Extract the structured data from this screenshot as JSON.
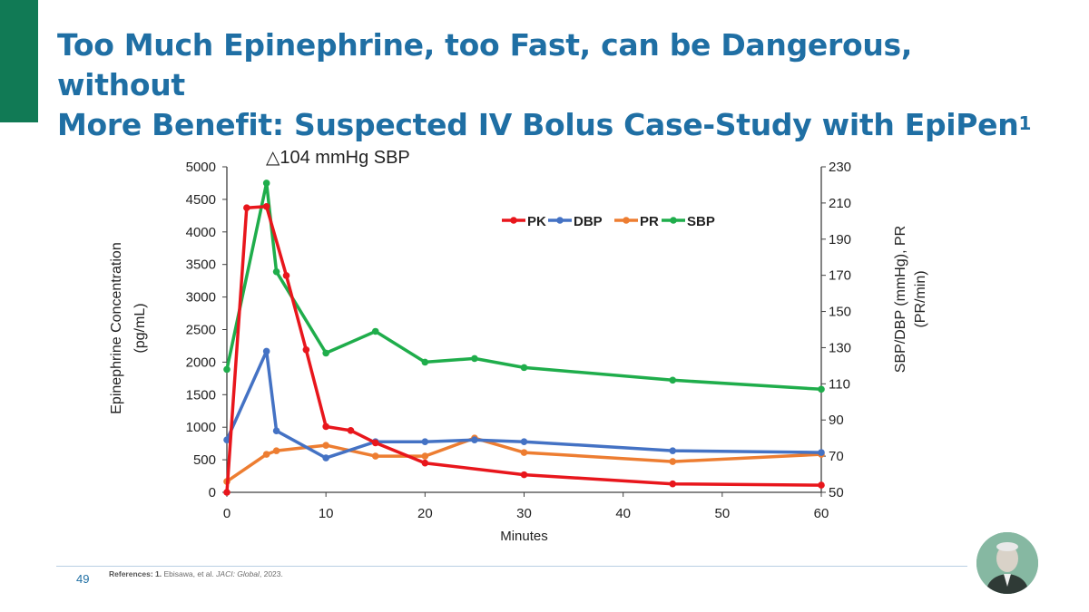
{
  "slide": {
    "title_line1": "Too Much Epinephrine, too Fast, can be Dangerous, without",
    "title_line2": "More Benefit: Suspected IV Bolus Case-Study with EpiPen",
    "title_sup": "1",
    "page_number": "49",
    "references_label": "References: 1.",
    "references_authors": "Ebisawa, et al.",
    "references_journal": "JACI: Global",
    "references_year": ", 2023."
  },
  "chart_data": {
    "type": "line",
    "annotation": "△104 mmHg SBP",
    "xlabel": "Minutes",
    "ylabel_left": "Epinephrine Concentration (pg/mL)",
    "ylabel_left_line1": "Epinephrine Concentration",
    "ylabel_left_line2": "(pg/mL)",
    "ylabel_right_line1": "SBP/DBP (mmHg), PR",
    "ylabel_right_line2": "(PR/min)",
    "xlim": [
      0,
      60
    ],
    "ylim_left": [
      0,
      5000
    ],
    "ylim_right": [
      50,
      230
    ],
    "x_ticks": [
      0,
      10,
      20,
      30,
      40,
      50,
      60
    ],
    "y_left_ticks": [
      0,
      500,
      1000,
      1500,
      2000,
      2500,
      3000,
      3500,
      4000,
      4500,
      5000
    ],
    "y_right_ticks": [
      50,
      70,
      90,
      110,
      130,
      150,
      170,
      190,
      210,
      230
    ],
    "legend_position": "top-center",
    "series": [
      {
        "name": "PK",
        "axis": "left",
        "color": "#e8161c",
        "points": [
          [
            0,
            0
          ],
          [
            2,
            4370
          ],
          [
            4,
            4390
          ],
          [
            6,
            3330
          ],
          [
            8,
            2190
          ],
          [
            10,
            1010
          ],
          [
            12.5,
            950
          ],
          [
            15,
            760
          ],
          [
            20,
            450
          ],
          [
            30,
            270
          ],
          [
            45,
            130
          ],
          [
            60,
            110
          ]
        ]
      },
      {
        "name": "DBP",
        "axis": "right",
        "color": "#4472c4",
        "points": [
          [
            0,
            79
          ],
          [
            4,
            128
          ],
          [
            5,
            84
          ],
          [
            10,
            69
          ],
          [
            15,
            78
          ],
          [
            20,
            78
          ],
          [
            25,
            79
          ],
          [
            30,
            78
          ],
          [
            45,
            73
          ],
          [
            60,
            72
          ]
        ]
      },
      {
        "name": "PR",
        "axis": "right",
        "color": "#ed7d31",
        "points": [
          [
            0,
            56
          ],
          [
            4,
            71
          ],
          [
            5,
            73
          ],
          [
            10,
            76
          ],
          [
            15,
            70
          ],
          [
            20,
            70
          ],
          [
            25,
            80
          ],
          [
            30,
            72
          ],
          [
            45,
            67
          ],
          [
            60,
            71
          ]
        ]
      },
      {
        "name": "SBP",
        "axis": "right",
        "color": "#1fad4b",
        "points": [
          [
            0,
            118
          ],
          [
            4,
            221
          ],
          [
            5,
            172
          ],
          [
            10,
            127
          ],
          [
            15,
            139
          ],
          [
            20,
            122
          ],
          [
            25,
            124
          ],
          [
            30,
            119
          ],
          [
            45,
            112
          ],
          [
            60,
            107
          ]
        ]
      }
    ]
  }
}
